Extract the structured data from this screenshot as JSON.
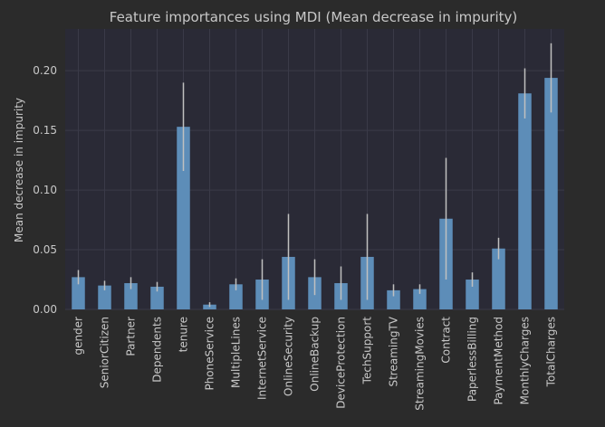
{
  "chart_data": {
    "type": "bar",
    "title": "Feature importances using MDI (Mean decrease in impurity)",
    "xlabel": "",
    "ylabel": "Mean decrease in impurity",
    "ylim": [
      0,
      0.235
    ],
    "yticks": [
      "0.00",
      "0.05",
      "0.10",
      "0.15",
      "0.20"
    ],
    "categories": [
      "gender",
      "SeniorCitizen",
      "Partner",
      "Dependents",
      "tenure",
      "PhoneService",
      "MultipleLines",
      "InternetService",
      "OnlineSecurity",
      "OnlineBackup",
      "DeviceProtection",
      "TechSupport",
      "StreamingTV",
      "StreamingMovies",
      "Contract",
      "PaperlessBilling",
      "PaymentMethod",
      "MonthlyCharges",
      "TotalCharges"
    ],
    "values": [
      0.027,
      0.02,
      0.022,
      0.019,
      0.153,
      0.004,
      0.021,
      0.025,
      0.044,
      0.027,
      0.022,
      0.044,
      0.016,
      0.017,
      0.076,
      0.025,
      0.051,
      0.181,
      0.194
    ],
    "errors": [
      0.006,
      0.004,
      0.005,
      0.004,
      0.037,
      0.002,
      0.005,
      0.017,
      0.036,
      0.015,
      0.014,
      0.036,
      0.005,
      0.004,
      0.051,
      0.006,
      0.009,
      0.021,
      0.029
    ],
    "grid": true,
    "colors": {
      "background": "#2b2b2b",
      "plot_area": "#2a2a36",
      "grid": "#3a3a48",
      "bar": "#5d8db8",
      "error": "#c0c0c0",
      "text": "#c8c8c8"
    }
  }
}
